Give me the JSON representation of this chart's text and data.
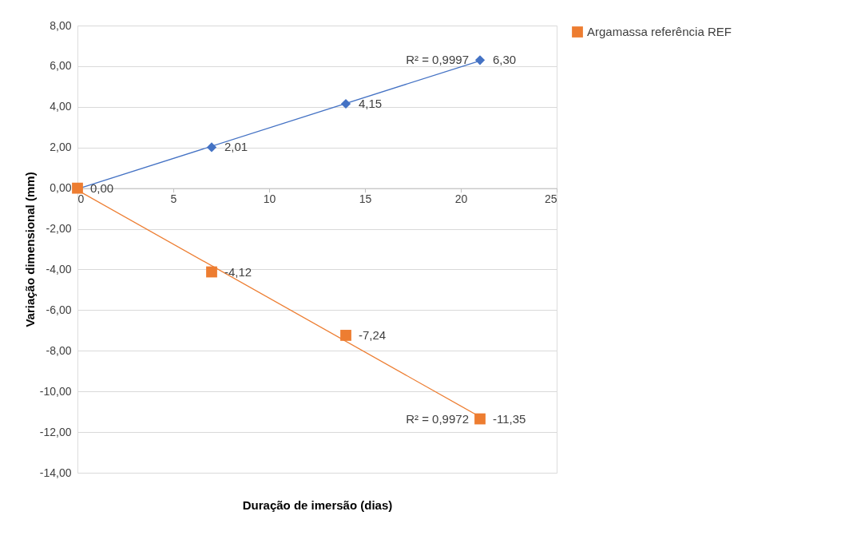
{
  "chart_data": {
    "type": "scatter",
    "xlabel": "Duração de imersão (dias)",
    "ylabel": "Variação dimensional (mm)",
    "xlim": [
      0,
      25
    ],
    "xticks": [
      0,
      5,
      10,
      15,
      20,
      25
    ],
    "ylim": [
      -14,
      8
    ],
    "yticks": [
      {
        "value": -14,
        "label": "-14,00"
      },
      {
        "value": -12,
        "label": "-12,00"
      },
      {
        "value": -10,
        "label": "-10,00"
      },
      {
        "value": -8,
        "label": "-8,00"
      },
      {
        "value": -6,
        "label": "-6,00"
      },
      {
        "value": -4,
        "label": "-4,00"
      },
      {
        "value": -2,
        "label": "-2,00"
      },
      {
        "value": 0,
        "label": "0,00"
      },
      {
        "value": 2,
        "label": "2,00"
      },
      {
        "value": 4,
        "label": "4,00"
      },
      {
        "value": 6,
        "label": "6,00"
      },
      {
        "value": 8,
        "label": "8,00"
      }
    ],
    "grid": "y",
    "legend": "right",
    "series": [
      {
        "color": "#4472c4",
        "marker": "diamond",
        "x": [
          7,
          14,
          21
        ],
        "values": [
          2.01,
          4.15,
          6.3
        ],
        "value_labels": [
          "2,01",
          "4,15",
          "6,30"
        ]
      },
      {
        "name": "Argamassa referência REF",
        "color": "#ed7d31",
        "marker": "square",
        "x": [
          0,
          7,
          14,
          21
        ],
        "values": [
          0,
          -4.12,
          -7.24,
          -11.35
        ],
        "value_labels": [
          "0,00",
          "-4,12",
          "-7,24",
          "-11,35"
        ]
      },
      {
        "type": "line",
        "color": "#4472c4",
        "x": [
          0,
          21
        ],
        "values": [
          -0.04,
          6.27
        ]
      },
      {
        "type": "line",
        "color": "#ed7d31",
        "x": [
          0,
          21
        ],
        "values": [
          -0.1,
          -11.25
        ]
      }
    ],
    "annotations": [
      {
        "text": "R² = 0,9997",
        "x": 21,
        "y": 6.3
      },
      {
        "text": "R² = 0,9972",
        "x": 21,
        "y": -11.35
      }
    ]
  }
}
